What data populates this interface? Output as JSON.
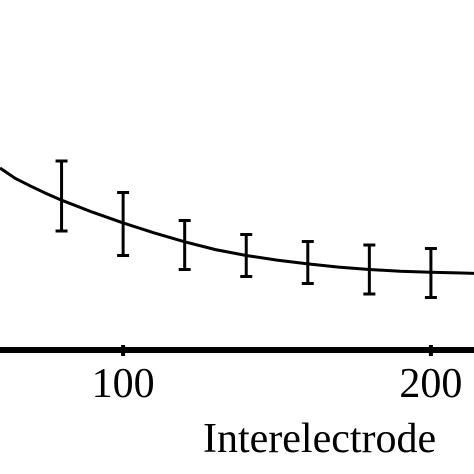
{
  "chart_data": {
    "type": "scatter",
    "xlabel": "Interelectrode",
    "xlim": [
      60,
      214
    ],
    "ylim": [
      0,
      100
    ],
    "x_ticks": [
      {
        "value": 100,
        "label": "100"
      },
      {
        "value": 200,
        "label": "200"
      }
    ],
    "grid": false,
    "legend": "none",
    "series": [
      {
        "kind": "points_with_error_bars",
        "x": [
          80,
          100,
          120,
          140,
          160,
          180,
          200
        ],
        "y": [
          44,
          36,
          30,
          27,
          25,
          23,
          22
        ],
        "yerr": [
          10,
          9,
          7,
          6,
          6,
          7,
          7
        ]
      },
      {
        "kind": "fit_curve",
        "x": [
          60,
          65,
          70,
          75,
          80,
          90,
          100,
          110,
          120,
          130,
          140,
          150,
          160,
          170,
          180,
          190,
          200,
          210,
          214
        ],
        "y": [
          52,
          49,
          46.8,
          44.7,
          42.8,
          39.4,
          36.3,
          33.5,
          30.9,
          28.7,
          27,
          25.7,
          24.6,
          23.7,
          23,
          22.5,
          22.2,
          22,
          21.9
        ]
      }
    ]
  }
}
